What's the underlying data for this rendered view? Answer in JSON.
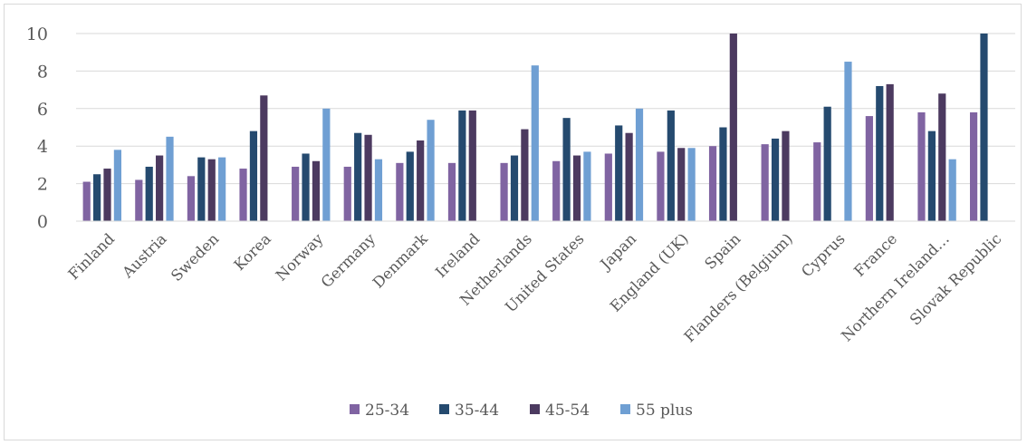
{
  "colors": {
    "s1": "#8064a2",
    "s2": "#254a6f",
    "s3": "#4c3a60",
    "s4": "#6f9fd3",
    "grid": "#d9d9d9",
    "text": "#595959"
  },
  "chart_data": {
    "type": "bar",
    "title": "",
    "xlabel": "",
    "ylabel": "",
    "ylim": [
      0,
      10
    ],
    "yticks": [
      0,
      2,
      4,
      6,
      8,
      10
    ],
    "grid": true,
    "legend_position": "bottom",
    "categories": [
      "Finland",
      "Austria",
      "Sweden",
      "Korea",
      "Norway",
      "Germany",
      "Denmark",
      "Ireland",
      "Netherlands",
      "United States",
      "Japan",
      "England (UK)",
      "Spain",
      "Flanders (Belgium)",
      "Cyprus",
      "France",
      "Northern Ireland…",
      "Slovak Republic"
    ],
    "series": [
      {
        "name": "25-34",
        "values": [
          2.1,
          2.2,
          2.4,
          2.8,
          2.9,
          2.9,
          3.1,
          3.1,
          3.1,
          3.2,
          3.6,
          3.7,
          4.0,
          4.1,
          4.2,
          5.6,
          5.8,
          5.8
        ]
      },
      {
        "name": "35-44",
        "values": [
          2.5,
          2.9,
          3.4,
          4.8,
          3.6,
          4.7,
          3.7,
          5.9,
          3.5,
          5.5,
          5.1,
          5.9,
          5.0,
          4.4,
          6.1,
          7.2,
          4.8,
          10.0
        ]
      },
      {
        "name": "45-54",
        "values": [
          2.8,
          3.5,
          3.3,
          6.7,
          3.2,
          4.6,
          4.3,
          5.9,
          4.9,
          3.5,
          4.7,
          3.9,
          10.0,
          4.8,
          null,
          7.3,
          6.8,
          null
        ]
      },
      {
        "name": "55 plus",
        "values": [
          3.8,
          4.5,
          3.4,
          null,
          6.0,
          3.3,
          5.4,
          null,
          8.3,
          3.7,
          6.0,
          3.9,
          null,
          null,
          8.5,
          null,
          3.3,
          null
        ]
      }
    ]
  }
}
